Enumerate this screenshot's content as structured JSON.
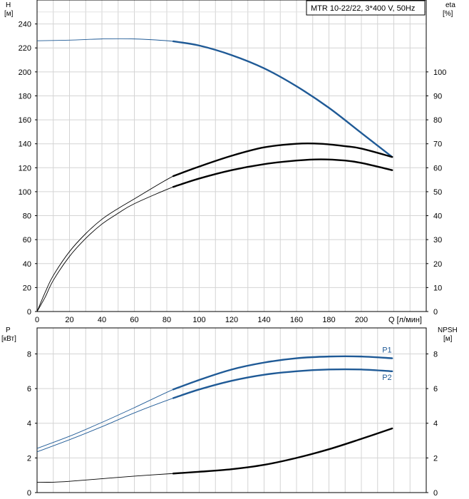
{
  "chart_data": [
    {
      "type": "line",
      "title": "MTR 10-22/22, 3*400 V, 50Hz",
      "left_axis": {
        "label": "H",
        "unit": "[м]",
        "range": [
          0,
          260
        ],
        "ticks": [
          0,
          20,
          40,
          60,
          80,
          100,
          120,
          140,
          160,
          180,
          200,
          220,
          240
        ]
      },
      "right_axis": {
        "label": "eta",
        "unit": "[%]",
        "range": [
          0,
          130
        ],
        "ticks": [
          0,
          10,
          20,
          30,
          40,
          50,
          60,
          70,
          80,
          90,
          100
        ]
      },
      "x_axis": {
        "label": "Q",
        "unit": "[л/мин]",
        "range": [
          0,
          240
        ],
        "ticks": [
          0,
          20,
          40,
          60,
          80,
          100,
          120,
          140,
          160,
          180,
          200
        ]
      },
      "x_ticks_text": [
        "0",
        "20",
        "40",
        "60",
        "80",
        "100",
        "120",
        "140",
        "160",
        "180",
        "200"
      ],
      "x_axis_text": "Q [л/мин]",
      "grid": true,
      "series": [
        {
          "color": "#1f5a96",
          "axis": "left",
          "bold_from": 84,
          "x": [
            0,
            20,
            40,
            60,
            84,
            100,
            120,
            140,
            160,
            180,
            200,
            219
          ],
          "y": [
            226,
            226.5,
            227.5,
            227.5,
            225.5,
            222,
            214,
            203,
            188,
            170,
            149,
            129
          ]
        },
        {
          "color": "#000000",
          "axis": "right",
          "bold_from": 84,
          "x": [
            0,
            5,
            10,
            20,
            30,
            40,
            50,
            60,
            84,
            100,
            120,
            140,
            160,
            175,
            190,
            200,
            219
          ],
          "y": [
            0,
            8,
            15,
            25,
            32.5,
            38.5,
            43,
            47,
            56.5,
            60.5,
            65,
            68.5,
            70,
            70,
            69,
            68,
            64.5
          ]
        },
        {
          "color": "#000000",
          "axis": "right",
          "bold_from": 84,
          "x": [
            0,
            5,
            10,
            20,
            30,
            40,
            50,
            60,
            84,
            100,
            120,
            140,
            160,
            175,
            190,
            200,
            219
          ],
          "y": [
            0,
            6,
            13,
            23,
            30.5,
            36.5,
            41,
            45,
            52,
            55.5,
            59,
            61.5,
            63,
            63.5,
            63,
            62,
            59
          ]
        }
      ]
    },
    {
      "type": "line",
      "left_axis": {
        "label": "P",
        "unit": "[кВт]",
        "range": [
          0,
          9.5
        ],
        "ticks": [
          0,
          2,
          4,
          6,
          8
        ]
      },
      "right_axis": {
        "label": "NPSH",
        "unit": "[м]",
        "range": [
          0,
          9.5
        ],
        "ticks": [
          0,
          2,
          4,
          6,
          8
        ]
      },
      "x_axis": {
        "range": [
          0,
          240
        ]
      },
      "grid": true,
      "series": [
        {
          "name": "P1",
          "color": "#1f5a96",
          "axis": "left",
          "bold_from": 84,
          "x": [
            0,
            20,
            40,
            60,
            84,
            100,
            120,
            140,
            160,
            180,
            200,
            219
          ],
          "y": [
            2.55,
            3.25,
            4.05,
            4.9,
            5.95,
            6.5,
            7.1,
            7.5,
            7.75,
            7.85,
            7.85,
            7.75
          ]
        },
        {
          "name": "P2",
          "color": "#1f5a96",
          "axis": "left",
          "bold_from": 84,
          "x": [
            0,
            20,
            40,
            60,
            84,
            100,
            120,
            140,
            160,
            180,
            200,
            219
          ],
          "y": [
            2.35,
            3.05,
            3.8,
            4.6,
            5.45,
            5.95,
            6.45,
            6.8,
            7.0,
            7.1,
            7.1,
            7.0
          ]
        },
        {
          "color": "#000000",
          "axis": "right",
          "bold_from": 84,
          "x": [
            0,
            10,
            20,
            40,
            60,
            84,
            100,
            120,
            140,
            160,
            180,
            200,
            219
          ],
          "y": [
            0.6,
            0.6,
            0.65,
            0.8,
            0.95,
            1.1,
            1.2,
            1.35,
            1.6,
            2.0,
            2.5,
            3.1,
            3.7
          ]
        }
      ]
    }
  ]
}
